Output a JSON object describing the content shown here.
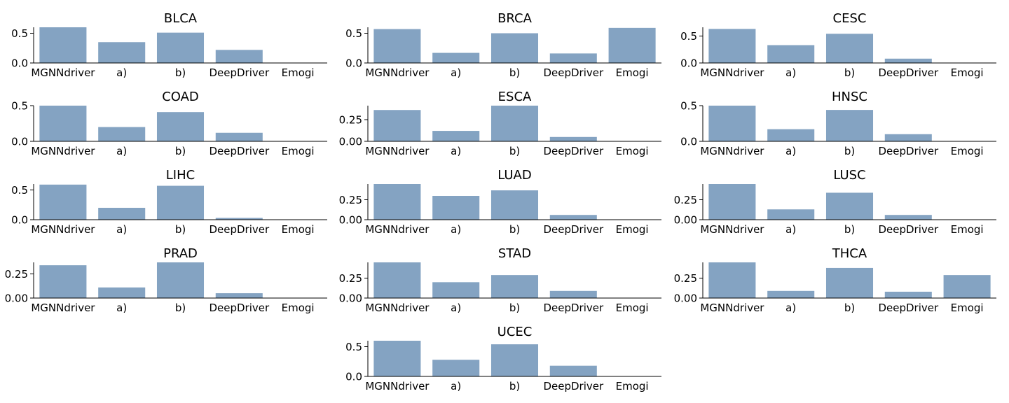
{
  "chart_data": [
    {
      "type": "bar",
      "title": "BLCA",
      "categories": [
        "MGNNdriver",
        "a)",
        "b)",
        "DeepDriver",
        "Emogi"
      ],
      "values": [
        0.6,
        0.35,
        0.51,
        0.22,
        0.0
      ],
      "yticks": [
        "0.0",
        "0.5"
      ],
      "ylim": [
        0,
        0.6
      ]
    },
    {
      "type": "bar",
      "title": "BRCA",
      "categories": [
        "MGNNdriver",
        "a)",
        "b)",
        "DeepDriver",
        "Emogi"
      ],
      "values": [
        0.57,
        0.17,
        0.5,
        0.16,
        0.59
      ],
      "yticks": [
        "0.0",
        "0.5"
      ],
      "ylim": [
        0,
        0.6
      ]
    },
    {
      "type": "bar",
      "title": "CESC",
      "categories": [
        "MGNNdriver",
        "a)",
        "b)",
        "DeepDriver",
        "Emogi"
      ],
      "values": [
        0.63,
        0.33,
        0.54,
        0.08,
        0.0
      ],
      "yticks": [
        "0.0",
        "0.5"
      ],
      "ylim": [
        0,
        0.66
      ]
    },
    {
      "type": "bar",
      "title": "COAD",
      "categories": [
        "MGNNdriver",
        "a)",
        "b)",
        "DeepDriver",
        "Emogi"
      ],
      "values": [
        0.5,
        0.2,
        0.41,
        0.12,
        0.0
      ],
      "yticks": [
        "0.0",
        "0.5"
      ],
      "ylim": [
        0,
        0.5
      ]
    },
    {
      "type": "bar",
      "title": "ESCA",
      "categories": [
        "MGNNdriver",
        "a)",
        "b)",
        "DeepDriver",
        "Emogi"
      ],
      "values": [
        0.36,
        0.12,
        0.41,
        0.05,
        0.0
      ],
      "yticks": [
        "0.00",
        "0.25"
      ],
      "ylim": [
        0,
        0.41
      ]
    },
    {
      "type": "bar",
      "title": "HNSC",
      "categories": [
        "MGNNdriver",
        "a)",
        "b)",
        "DeepDriver",
        "Emogi"
      ],
      "values": [
        0.5,
        0.17,
        0.44,
        0.1,
        0.0
      ],
      "yticks": [
        "0.0",
        "0.5"
      ],
      "ylim": [
        0,
        0.5
      ]
    },
    {
      "type": "bar",
      "title": "LIHC",
      "categories": [
        "MGNNdriver",
        "a)",
        "b)",
        "DeepDriver",
        "Emogi"
      ],
      "values": [
        0.59,
        0.2,
        0.57,
        0.03,
        0.0
      ],
      "yticks": [
        "0.0",
        "0.5"
      ],
      "ylim": [
        0,
        0.6
      ]
    },
    {
      "type": "bar",
      "title": "LUAD",
      "categories": [
        "MGNNdriver",
        "a)",
        "b)",
        "DeepDriver",
        "Emogi"
      ],
      "values": [
        0.45,
        0.3,
        0.37,
        0.06,
        0.0
      ],
      "yticks": [
        "0.00",
        "0.25"
      ],
      "ylim": [
        0,
        0.45
      ]
    },
    {
      "type": "bar",
      "title": "LUSC",
      "categories": [
        "MGNNdriver",
        "a)",
        "b)",
        "DeepDriver",
        "Emogi"
      ],
      "values": [
        0.45,
        0.13,
        0.34,
        0.06,
        0.0
      ],
      "yticks": [
        "0.00",
        "0.25"
      ],
      "ylim": [
        0,
        0.45
      ]
    },
    {
      "type": "bar",
      "title": "PRAD",
      "categories": [
        "MGNNdriver",
        "a)",
        "b)",
        "DeepDriver",
        "Emogi"
      ],
      "values": [
        0.34,
        0.11,
        0.37,
        0.05,
        0.0
      ],
      "yticks": [
        "0.00",
        "0.25"
      ],
      "ylim": [
        0,
        0.37
      ]
    },
    {
      "type": "bar",
      "title": "STAD",
      "categories": [
        "MGNNdriver",
        "a)",
        "b)",
        "DeepDriver",
        "Emogi"
      ],
      "values": [
        0.45,
        0.2,
        0.29,
        0.09,
        0.0
      ],
      "yticks": [
        "0.00",
        "0.25"
      ],
      "ylim": [
        0,
        0.45
      ]
    },
    {
      "type": "bar",
      "title": "THCA",
      "categories": [
        "MGNNdriver",
        "a)",
        "b)",
        "DeepDriver",
        "Emogi"
      ],
      "values": [
        0.45,
        0.09,
        0.38,
        0.08,
        0.29
      ],
      "yticks": [
        "0.00",
        "0.25"
      ],
      "ylim": [
        0,
        0.45
      ]
    },
    {
      "type": "bar",
      "title": "UCEC",
      "categories": [
        "MGNNdriver",
        "a)",
        "b)",
        "DeepDriver",
        "Emogi"
      ],
      "values": [
        0.6,
        0.28,
        0.54,
        0.18,
        0.0
      ],
      "yticks": [
        "0.0",
        "0.5"
      ],
      "ylim": [
        0,
        0.6
      ]
    }
  ],
  "colors": {
    "bar": "#7f9fbf",
    "axis": "#000000",
    "text": "#000000"
  }
}
